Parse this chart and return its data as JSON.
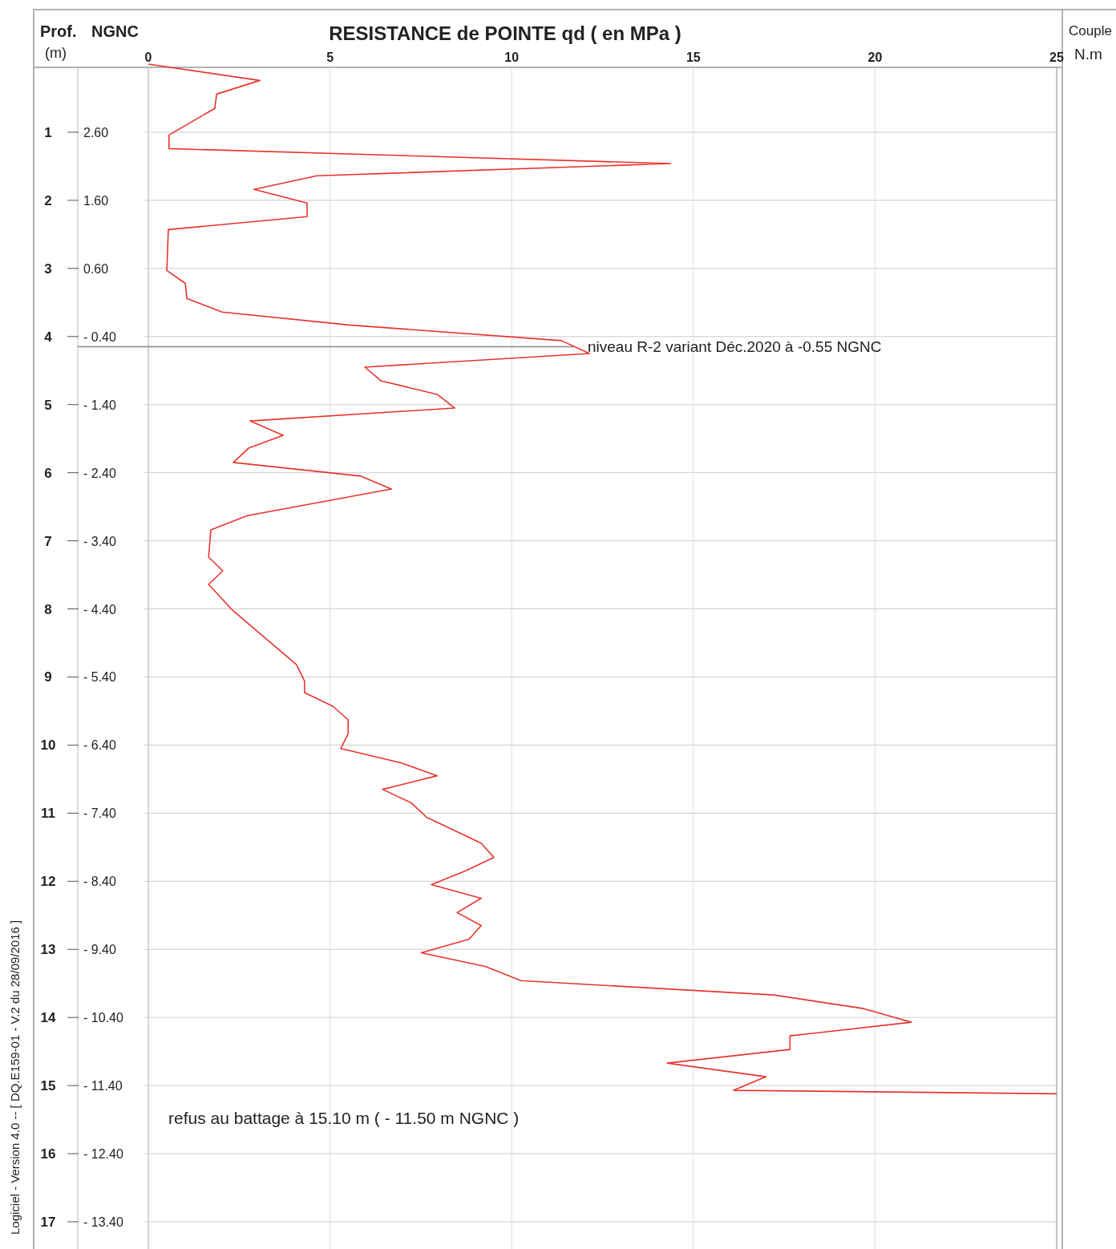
{
  "chart_data": {
    "type": "line",
    "title": "RESISTANCE de POINTE  qd  ( en MPa )",
    "ylabel": "Prof. (m)",
    "y2label": "NGNC",
    "xlim": [
      0,
      25
    ],
    "xticks": [
      0,
      5,
      10,
      15,
      20,
      25
    ],
    "ylim": [
      17.4,
      0
    ],
    "yticks": [
      1,
      2,
      3,
      4,
      5,
      6,
      7,
      8,
      9,
      10,
      11,
      12,
      13,
      14,
      15,
      16,
      17
    ],
    "y2lim": [
      -13.8,
      3.6
    ],
    "y2ticks": [
      {
        "value": 2.6,
        "label": "2.60"
      },
      {
        "value": 1.6,
        "label": "1.60"
      },
      {
        "value": 0.6,
        "label": "0.60"
      },
      {
        "value": -0.4,
        "label": "- 0.40"
      },
      {
        "value": -1.4,
        "label": "- 1.40"
      },
      {
        "value": -2.4,
        "label": "- 2.40"
      },
      {
        "value": -3.4,
        "label": "- 3.40"
      },
      {
        "value": -4.4,
        "label": "- 4.40"
      },
      {
        "value": -5.4,
        "label": "- 5.40"
      },
      {
        "value": -6.4,
        "label": "- 6.40"
      },
      {
        "value": -7.4,
        "label": "- 7.40"
      },
      {
        "value": -8.4,
        "label": "- 8.40"
      },
      {
        "value": -9.4,
        "label": "- 9.40"
      },
      {
        "value": -10.4,
        "label": "- 10.40"
      },
      {
        "value": -11.4,
        "label": "- 11.40"
      },
      {
        "value": -12.4,
        "label": "- 12.40"
      },
      {
        "value": -13.4,
        "label": "- 13.40"
      }
    ],
    "grid": true,
    "marker": "none",
    "line_style": "solid",
    "series": [
      {
        "color": "#e8342c",
        "x": [
          0,
          3.07,
          1.88,
          1.83,
          0.57,
          0.57,
          14.37,
          4.64,
          2.91,
          4.37,
          4.37,
          0.55,
          0.51,
          1.02,
          1.06,
          2.03,
          5.52,
          11.37,
          12.14,
          5.96,
          6.4,
          7.95,
          8.43,
          2.8,
          3.71,
          2.76,
          2.34,
          5.85,
          6.69,
          2.72,
          1.72,
          1.66,
          2.05,
          1.66,
          2.32,
          4.08,
          4.3,
          4.3,
          5.08,
          5.5,
          5.5,
          5.3,
          6.95,
          7.95,
          6.45,
          7.24,
          7.66,
          9.16,
          9.51,
          8.72,
          7.79,
          9.16,
          8.5,
          9.16,
          8.83,
          7.51,
          9.27,
          10.26,
          17.22,
          19.69,
          21,
          17.66,
          17.66,
          14.28,
          17,
          16.11,
          25
        ],
        "values": [
          0,
          0.24,
          0.44,
          0.65,
          1.04,
          1.24,
          1.46,
          1.64,
          1.84,
          2.04,
          2.24,
          2.43,
          3.03,
          3.22,
          3.44,
          3.64,
          3.83,
          4.06,
          4.25,
          4.45,
          4.65,
          4.85,
          5.05,
          5.24,
          5.45,
          5.64,
          5.85,
          6.05,
          6.24,
          6.63,
          6.84,
          7.24,
          7.44,
          7.64,
          8.02,
          8.82,
          9.06,
          9.23,
          9.43,
          9.63,
          9.83,
          10.05,
          10.26,
          10.45,
          10.65,
          10.85,
          11.06,
          11.44,
          11.65,
          11.85,
          12.05,
          12.25,
          12.46,
          12.65,
          12.85,
          13.05,
          13.25,
          13.46,
          13.67,
          13.87,
          14.07,
          14.27,
          14.47,
          14.67,
          14.87,
          15.07,
          15.12
        ]
      }
    ],
    "ref_lines": [
      {
        "axis": "y",
        "value": 4.15,
        "label": "niveau R-2 variant Déc.2020 à  -0.55 NGNC",
        "color": "#888888"
      }
    ],
    "annotations": [
      "refus au battage à 15.10 m ( - 11.50 m NGNC )",
      "Couple",
      "N.m",
      "Logiciel - Version 4.0  --  [ DQ.E159-01 - V.2 du 28/09/2016 ]"
    ]
  }
}
